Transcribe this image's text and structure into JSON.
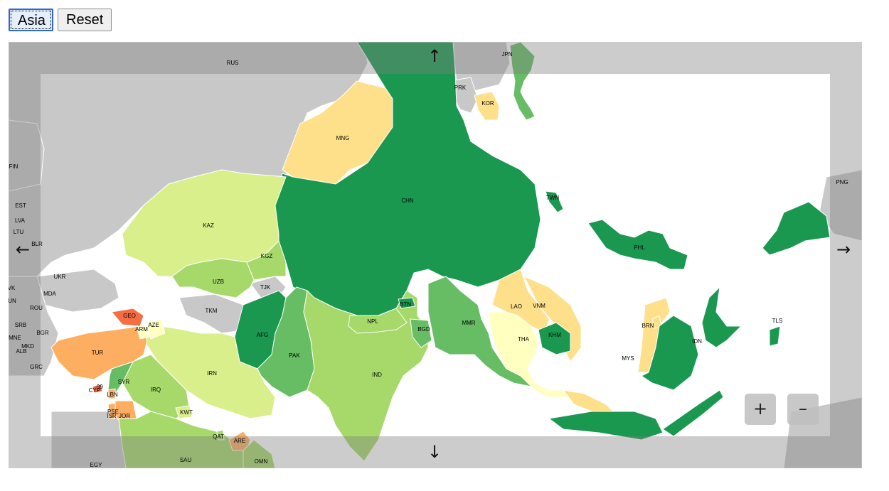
{
  "buttons": {
    "asia": "Asia",
    "reset": "Reset"
  },
  "map": {
    "region": "Asia",
    "pan_arrows": {
      "up": "↑",
      "down": "↓",
      "left": "←",
      "right": "→"
    },
    "zoom": {
      "in": "+",
      "out": "–"
    },
    "color_scale": [
      "#d73027",
      "#f46d43",
      "#fdae61",
      "#fee08b",
      "#ffffbf",
      "#d9ef8b",
      "#a6d96a",
      "#66bd63",
      "#1a9850"
    ],
    "countries": [
      {
        "code": "RUS",
        "fill": "#c8c8c8"
      },
      {
        "code": "JPN",
        "fill": "#66bd63"
      },
      {
        "code": "PRK",
        "fill": "#c8c8c8"
      },
      {
        "code": "KOR",
        "fill": "#fee08b"
      },
      {
        "code": "MNG",
        "fill": "#fee08b"
      },
      {
        "code": "CHN",
        "fill": "#1a9850"
      },
      {
        "code": "TWN",
        "fill": "#1a9850"
      },
      {
        "code": "KAZ",
        "fill": "#d9ef8b"
      },
      {
        "code": "KGZ",
        "fill": "#a6d96a"
      },
      {
        "code": "UZB",
        "fill": "#a6d96a"
      },
      {
        "code": "TJK",
        "fill": "#c8c8c8"
      },
      {
        "code": "TKM",
        "fill": "#c8c8c8"
      },
      {
        "code": "AFG",
        "fill": "#1a9850"
      },
      {
        "code": "PAK",
        "fill": "#66bd63"
      },
      {
        "code": "IND",
        "fill": "#a6d96a"
      },
      {
        "code": "NPL",
        "fill": "#a6d96a"
      },
      {
        "code": "BTN",
        "fill": "#1a9850"
      },
      {
        "code": "BGD",
        "fill": "#66bd63"
      },
      {
        "code": "MMR",
        "fill": "#66bd63"
      },
      {
        "code": "LAO",
        "fill": "#fee08b"
      },
      {
        "code": "VNM",
        "fill": "#fee08b"
      },
      {
        "code": "THA",
        "fill": "#ffffbf"
      },
      {
        "code": "KHM",
        "fill": "#1a9850"
      },
      {
        "code": "PHL",
        "fill": "#1a9850"
      },
      {
        "code": "BRN",
        "fill": "#fee08b"
      },
      {
        "code": "MYS",
        "fill": "#fee08b"
      },
      {
        "code": "IDN",
        "fill": "#1a9850"
      },
      {
        "code": "TLS",
        "fill": "#1a9850"
      },
      {
        "code": "PNG",
        "fill": "#c8c8c8"
      },
      {
        "code": "IRN",
        "fill": "#d9ef8b"
      },
      {
        "code": "IRQ",
        "fill": "#a6d96a"
      },
      {
        "code": "SYR",
        "fill": "#66bd63"
      },
      {
        "code": "TUR",
        "fill": "#fdae61"
      },
      {
        "code": "GEO",
        "fill": "#f46d43"
      },
      {
        "code": "ARM",
        "fill": "#ffffbf"
      },
      {
        "code": "AZE",
        "fill": "#ffffbf"
      },
      {
        "code": "CYP",
        "fill": "#f46d43"
      },
      {
        "code": "LBN",
        "fill": "#fdae61"
      },
      {
        "code": "PSE",
        "fill": "#fdae61"
      },
      {
        "code": "JOR",
        "fill": "#fdae61"
      },
      {
        "code": "KWT",
        "fill": "#d9ef8b"
      },
      {
        "code": "SAU",
        "fill": "#a6d96a"
      },
      {
        "code": "QAT",
        "fill": "#a6d96a"
      },
      {
        "code": "ARE",
        "fill": "#fdae61"
      },
      {
        "code": "OMN",
        "fill": "#a6d96a"
      }
    ],
    "other_labels": [
      "FIN",
      "EST",
      "LVA",
      "LTU",
      "BLR",
      "UKR",
      "MDA",
      "ROU",
      "SRB",
      "BGR",
      "MNE",
      "MKD",
      "ALB",
      "GRC",
      "EGY",
      "-99",
      "ISR",
      "VK",
      "UN"
    ]
  }
}
